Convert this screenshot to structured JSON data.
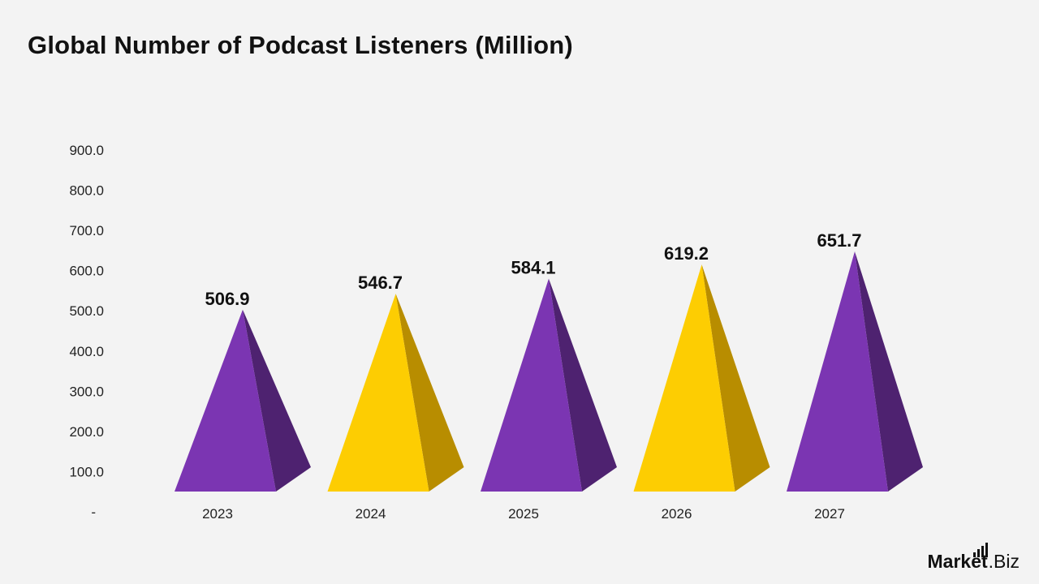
{
  "title": "Global Number of Podcast Listeners (Million)",
  "logo": {
    "part1": "Market",
    "part2": ".Biz"
  },
  "colors": {
    "purple_front": "#7b35b2",
    "purple_side": "#4e2270",
    "yellow_front": "#fdcd02",
    "yellow_side": "#b88d00",
    "text": "#111111"
  },
  "chart_data": {
    "type": "bar",
    "style": "3d-pyramid",
    "title": "Global Number of Podcast Listeners (Million)",
    "categories": [
      "2023",
      "2024",
      "2025",
      "2026",
      "2027"
    ],
    "values": [
      506.9,
      546.7,
      584.1,
      619.2,
      651.7
    ],
    "value_labels": [
      "506.9",
      "546.7",
      "584.1",
      "619.2",
      "651.7"
    ],
    "bar_colors": [
      "purple",
      "yellow",
      "purple",
      "yellow",
      "purple"
    ],
    "y_ticks": [
      "-",
      "100.0",
      "200.0",
      "300.0",
      "400.0",
      "500.0",
      "600.0",
      "700.0",
      "800.0",
      "900.0"
    ],
    "ylim": [
      0,
      900
    ],
    "grid": false,
    "legend": "none"
  }
}
